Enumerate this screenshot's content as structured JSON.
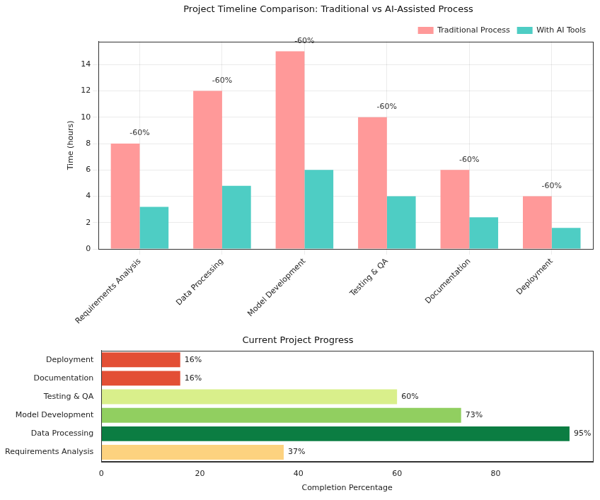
{
  "chart_data": [
    {
      "type": "bar",
      "title": "Project Timeline Comparison: Traditional vs AI-Assisted Process",
      "y_label": "Time (hours)",
      "categories": [
        "Requirements Analysis",
        "Data Processing",
        "Model Development",
        "Testing & QA",
        "Documentation",
        "Deployment"
      ],
      "series": [
        {
          "name": "Traditional Process",
          "color": "#ff9999",
          "values": [
            8,
            12,
            15,
            10,
            6,
            4
          ]
        },
        {
          "name": "With AI Tools",
          "color": "#4ecdc4",
          "values": [
            3.2,
            4.8,
            6,
            4,
            2.4,
            1.6
          ]
        }
      ],
      "annotations": [
        "-60%",
        "-60%",
        "-60%",
        "-60%",
        "-60%",
        "-60%"
      ],
      "ylim": [
        0,
        15.75
      ],
      "yticks": [
        0,
        2,
        4,
        6,
        8,
        10,
        12,
        14
      ],
      "grid": true,
      "legend": "upper right"
    },
    {
      "type": "bar",
      "orientation": "horizontal",
      "title": "Current Project Progress",
      "x_label": "Completion Percentage",
      "categories": [
        "Requirements Analysis",
        "Data Processing",
        "Model Development",
        "Testing & QA",
        "Documentation",
        "Deployment"
      ],
      "values": [
        37,
        95,
        73,
        60,
        16,
        16
      ],
      "value_labels": [
        "37%",
        "95%",
        "73%",
        "60%",
        "16%",
        "16%"
      ],
      "colors": [
        "#fdd27f",
        "#0b7d42",
        "#91cf60",
        "#d9ef8b",
        "#e34f35",
        "#e34f35"
      ],
      "xlim": [
        0,
        99.75
      ],
      "xticks": [
        0,
        20,
        40,
        60,
        80
      ],
      "grid": false,
      "data_labels": true
    }
  ]
}
